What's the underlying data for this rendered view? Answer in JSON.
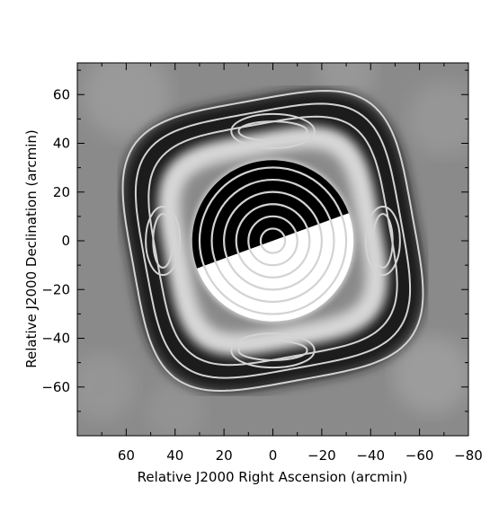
{
  "chart_data": {
    "type": "heatmap",
    "title": "",
    "xlabel": "Relative J2000 Right Ascension (arcmin)",
    "ylabel": "Relative J2000 Declination (arcmin)",
    "xlim": [
      80,
      -80
    ],
    "ylim": [
      -80,
      73
    ],
    "x_ticks": [
      60,
      40,
      20,
      0,
      -20,
      -40,
      -60,
      -80
    ],
    "x_tick_labels": [
      "60",
      "40",
      "20",
      "0",
      "−20",
      "−40",
      "−60",
      "−80"
    ],
    "y_ticks": [
      60,
      40,
      20,
      0,
      -20,
      -40,
      -60
    ],
    "y_tick_labels": [
      "60",
      "40",
      "20",
      "0",
      "−20",
      "−40",
      "−60"
    ],
    "colormap": "grayscale",
    "contour_color": "#d3d3d3",
    "inner_circle_contours_radius_arcmin": [
      5,
      10,
      15,
      20,
      25,
      30
    ],
    "outer_rounded_square_contours_radius_arcmin": [
      48,
      53,
      58
    ],
    "lobe_contours": [
      {
        "center": [
          0,
          45
        ],
        "size": [
          28,
          8
        ]
      },
      {
        "center": [
          0,
          -45
        ],
        "size": [
          28,
          8
        ]
      },
      {
        "center": [
          45,
          0
        ],
        "size": [
          8,
          22
        ]
      },
      {
        "center": [
          -45,
          0
        ],
        "size": [
          8,
          22
        ]
      }
    ],
    "features": [
      {
        "center": [
          0,
          0
        ],
        "radius": 33,
        "sign": "split",
        "note": "black upper-left, white lower-right"
      }
    ],
    "grid": false,
    "legend": "none"
  }
}
